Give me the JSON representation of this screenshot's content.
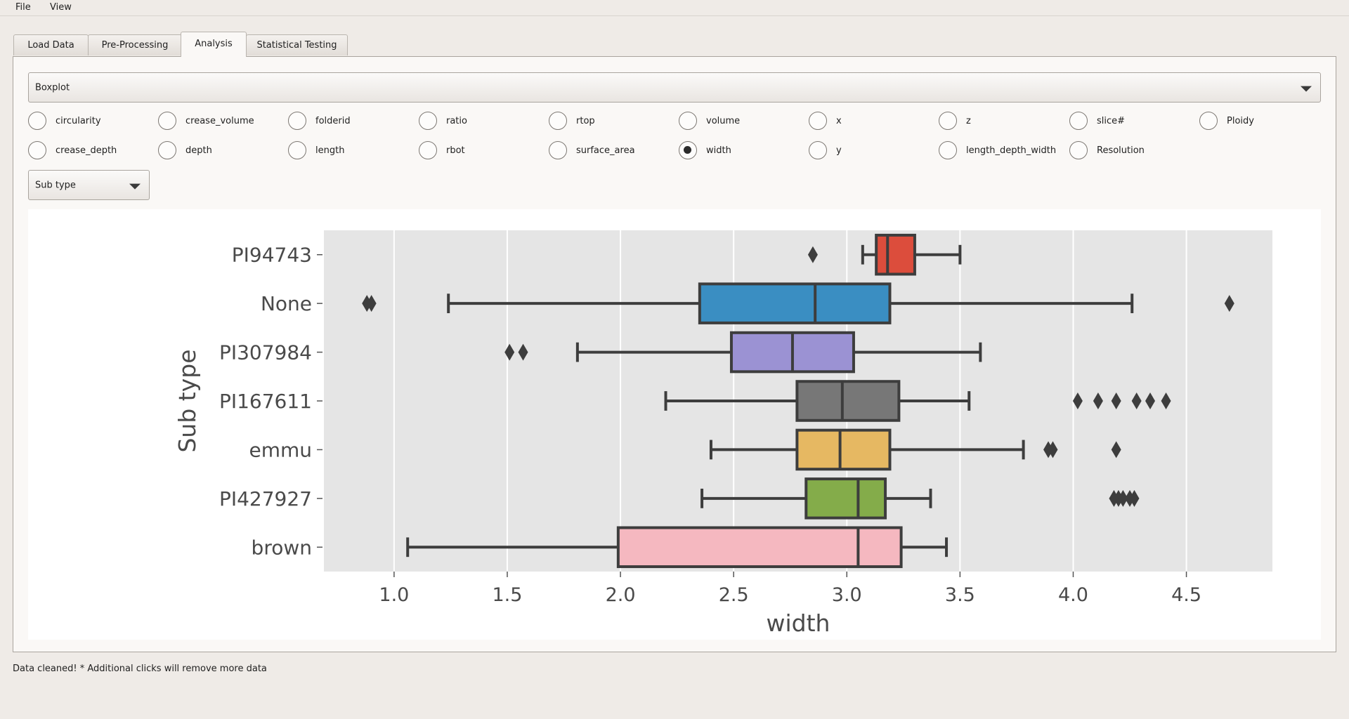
{
  "menu": [
    "File",
    "View"
  ],
  "tabs": [
    {
      "label": "Load Data",
      "active": false
    },
    {
      "label": "Pre-Processing",
      "active": false
    },
    {
      "label": "Analysis",
      "active": true
    },
    {
      "label": "Statistical Testing",
      "active": false
    }
  ],
  "plot_type_select": {
    "value": "Boxplot"
  },
  "variables": [
    {
      "label": "circularity",
      "checked": false
    },
    {
      "label": "crease_volume",
      "checked": false
    },
    {
      "label": "folderid",
      "checked": false
    },
    {
      "label": "ratio",
      "checked": false
    },
    {
      "label": "rtop",
      "checked": false
    },
    {
      "label": "volume",
      "checked": false
    },
    {
      "label": "x",
      "checked": false
    },
    {
      "label": "z",
      "checked": false
    },
    {
      "label": "slice#",
      "checked": false
    },
    {
      "label": "Ploidy",
      "checked": false
    },
    {
      "label": "crease_depth",
      "checked": false
    },
    {
      "label": "depth",
      "checked": false
    },
    {
      "label": "length",
      "checked": false
    },
    {
      "label": "rbot",
      "checked": false
    },
    {
      "label": "surface_area",
      "checked": false
    },
    {
      "label": "width",
      "checked": true
    },
    {
      "label": "y",
      "checked": false
    },
    {
      "label": "length_depth_width",
      "checked": false
    },
    {
      "label": "Resolution",
      "checked": false
    }
  ],
  "group_select": {
    "value": "Sub type"
  },
  "status_text": "Data cleaned! * Additional clicks will remove more data",
  "chart_data": {
    "type": "boxplot",
    "orientation": "horizontal",
    "xlabel": "width",
    "ylabel": "Sub type",
    "xlim": [
      0.69,
      4.88
    ],
    "xticks": [
      1.0,
      1.5,
      2.0,
      2.5,
      3.0,
      3.5,
      4.0,
      4.5
    ],
    "grid": true,
    "categories": [
      "PI94743",
      "None",
      "PI307984",
      "PI167611",
      "emmu",
      "PI427927",
      "brown"
    ],
    "boxes": [
      {
        "name": "PI94743",
        "color": "#dc4d3c",
        "whislo": 3.07,
        "q1": 3.13,
        "med": 3.18,
        "q3": 3.3,
        "whishi": 3.5,
        "fliers": [
          2.85
        ]
      },
      {
        "name": "None",
        "color": "#3a8ec2",
        "whislo": 1.24,
        "q1": 2.35,
        "med": 2.86,
        "q3": 3.19,
        "whishi": 4.26,
        "fliers": [
          0.88,
          0.9,
          4.69
        ]
      },
      {
        "name": "PI307984",
        "color": "#9b92d3",
        "whislo": 1.81,
        "q1": 2.49,
        "med": 2.76,
        "q3": 3.03,
        "whishi": 3.59,
        "fliers": [
          1.51,
          1.57
        ]
      },
      {
        "name": "PI167611",
        "color": "#777777",
        "whislo": 2.2,
        "q1": 2.78,
        "med": 2.98,
        "q3": 3.23,
        "whishi": 3.54,
        "fliers": [
          4.02,
          4.11,
          4.19,
          4.28,
          4.34,
          4.41
        ]
      },
      {
        "name": "emmu",
        "color": "#e6b862",
        "whislo": 2.4,
        "q1": 2.78,
        "med": 2.97,
        "q3": 3.19,
        "whishi": 3.78,
        "fliers": [
          3.89,
          3.91,
          4.19
        ]
      },
      {
        "name": "PI427927",
        "color": "#84ac4a",
        "whislo": 2.36,
        "q1": 2.82,
        "med": 3.05,
        "q3": 3.17,
        "whishi": 3.37,
        "fliers": [
          4.18,
          4.2,
          4.22,
          4.25,
          4.27
        ]
      },
      {
        "name": "brown",
        "color": "#f5b8c0",
        "whislo": 1.06,
        "q1": 1.99,
        "med": 3.05,
        "q3": 3.24,
        "whishi": 3.44,
        "fliers": []
      }
    ]
  }
}
